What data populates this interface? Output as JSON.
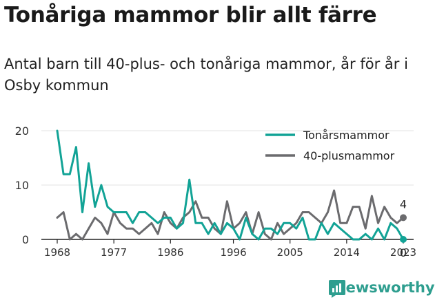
{
  "header": {
    "title": "Tonåriga mammor blir allt färre",
    "subtitle": "Antal barn till 40-plus- och tonåriga mammor, år för år i Osby kommun"
  },
  "brand": {
    "name": "Newsworthy",
    "color": "#2e9e8f",
    "icon": "chart-logo-icon"
  },
  "chart_data": {
    "type": "line",
    "x": [
      1968,
      1969,
      1970,
      1971,
      1972,
      1973,
      1974,
      1975,
      1976,
      1977,
      1978,
      1979,
      1980,
      1981,
      1982,
      1983,
      1984,
      1985,
      1986,
      1987,
      1988,
      1989,
      1990,
      1991,
      1992,
      1993,
      1994,
      1995,
      1996,
      1997,
      1998,
      1999,
      2000,
      2001,
      2002,
      2003,
      2004,
      2005,
      2006,
      2007,
      2008,
      2009,
      2010,
      2011,
      2012,
      2013,
      2014,
      2015,
      2016,
      2017,
      2018,
      2019,
      2020,
      2021,
      2022,
      2023
    ],
    "series": [
      {
        "name": "Tonårsmammor",
        "color": "#12a396",
        "values": [
          20,
          12,
          12,
          17,
          5,
          14,
          6,
          10,
          6,
          5,
          5,
          5,
          3,
          5,
          5,
          4,
          3,
          4,
          4,
          2,
          3,
          11,
          3,
          3,
          1,
          3,
          1,
          3,
          2,
          0,
          4,
          1,
          0,
          2,
          2,
          1,
          3,
          3,
          2,
          4,
          0,
          0,
          3,
          1,
          3,
          2,
          1,
          0,
          0,
          1,
          0,
          2,
          0,
          3,
          2,
          0
        ],
        "end_label": "0"
      },
      {
        "name": "40-plusmammor",
        "color": "#6b6b6e",
        "values": [
          4,
          5,
          0,
          1,
          0,
          2,
          4,
          3,
          1,
          5,
          3,
          2,
          2,
          1,
          2,
          3,
          1,
          5,
          3,
          2,
          4,
          5,
          7,
          4,
          4,
          2,
          1,
          7,
          2,
          3,
          5,
          1,
          5,
          1,
          0,
          3,
          1,
          2,
          3,
          5,
          5,
          4,
          3,
          5,
          9,
          3,
          3,
          6,
          6,
          2,
          8,
          3,
          6,
          4,
          3,
          4
        ],
        "end_label": "4"
      }
    ],
    "x_ticks": [
      "1968",
      "1977",
      "1986",
      "1996",
      "2005",
      "2014",
      "2023"
    ],
    "y_ticks": [
      "0",
      "10",
      "20"
    ],
    "xlim": [
      1968,
      2023
    ],
    "ylim": [
      0,
      20
    ],
    "grid": true,
    "legend": "top-right"
  }
}
